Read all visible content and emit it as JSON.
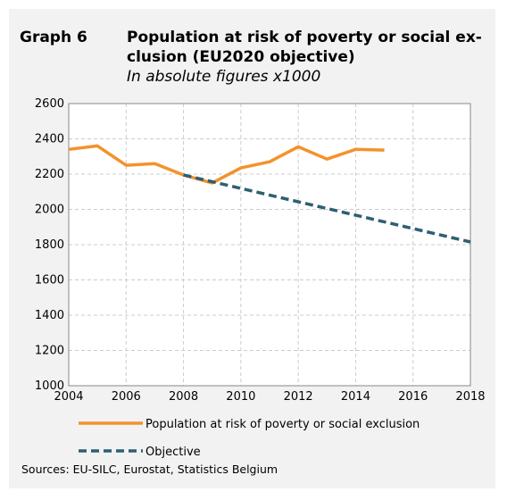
{
  "header": {
    "graph_label": "Graph 6",
    "title_line1": "Population at risk of poverty or social ex-",
    "title_line2": "clusion (EU2020 objective)",
    "subtitle": "In absolute figures x1000"
  },
  "source": "Sources: EU-SILC, Eurostat, Statistics Belgium",
  "colors": {
    "population": "#f4922c",
    "objective": "#2e5f72",
    "grid": "#cccccc",
    "background": "#f2f2f2"
  },
  "chart_data": {
    "type": "line",
    "title": "Population at risk of poverty or social exclusion (EU2020 objective)",
    "subtitle": "In absolute figures x1000",
    "xlim": [
      2004,
      2018
    ],
    "ylim": [
      1000,
      2600
    ],
    "x_ticks": [
      2004,
      2006,
      2008,
      2010,
      2012,
      2014,
      2016,
      2018
    ],
    "y_ticks": [
      1000,
      1200,
      1400,
      1600,
      1800,
      2000,
      2200,
      2400,
      2600
    ],
    "grid": true,
    "legend_position": "bottom",
    "series": [
      {
        "name": "Population at risk of poverty or social exclusion",
        "style": "solid",
        "color": "#f4922c",
        "x": [
          2004,
          2005,
          2006,
          2007,
          2008,
          2009,
          2010,
          2011,
          2012,
          2013,
          2014,
          2015
        ],
        "y": [
          2340,
          2360,
          2250,
          2260,
          2195,
          2150,
          2235,
          2270,
          2355,
          2285,
          2340,
          2336
        ]
      },
      {
        "name": "Objective",
        "style": "dashed",
        "color": "#2e5f72",
        "x": [
          2008,
          2018
        ],
        "y": [
          2195,
          1815
        ]
      }
    ]
  }
}
